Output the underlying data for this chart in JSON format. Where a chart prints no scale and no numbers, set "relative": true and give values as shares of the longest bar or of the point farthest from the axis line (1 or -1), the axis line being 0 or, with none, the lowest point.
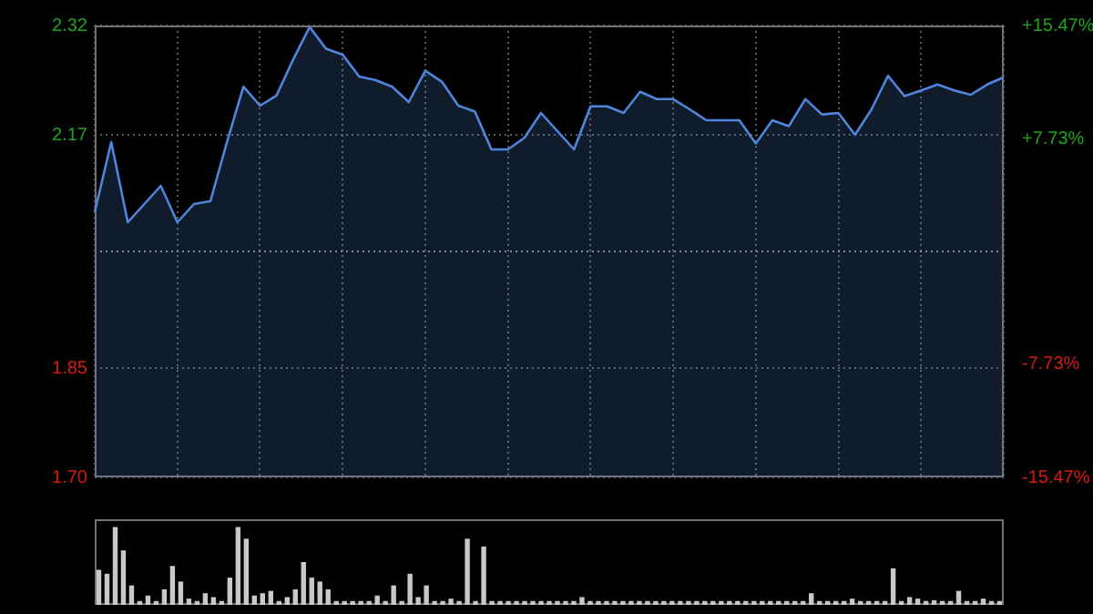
{
  "chart_data": [
    {
      "type": "area",
      "color": "#4f86dc",
      "marker": "none",
      "grid": true,
      "categories": [
        null,
        null,
        null,
        null,
        null,
        null,
        null,
        null,
        null,
        null,
        null,
        null,
        null,
        null,
        null,
        null,
        null,
        null,
        null,
        null,
        null,
        null,
        null,
        null,
        null,
        null,
        null,
        null,
        null,
        null,
        null,
        null,
        null,
        null,
        null,
        null,
        null,
        null,
        null,
        null,
        null,
        null,
        null,
        null,
        null,
        null,
        null,
        null,
        null,
        null,
        null,
        null,
        null,
        null,
        null,
        null
      ],
      "values": [
        2.064,
        2.16,
        2.05,
        2.075,
        2.1,
        2.05,
        2.075,
        2.079,
        2.16,
        2.236,
        2.21,
        2.224,
        2.273,
        2.318,
        2.288,
        2.28,
        2.25,
        2.245,
        2.236,
        2.215,
        2.258,
        2.243,
        2.21,
        2.202,
        2.15,
        2.15,
        2.166,
        2.2,
        2.175,
        2.15,
        2.209,
        2.209,
        2.2,
        2.229,
        2.219,
        2.219,
        2.205,
        2.19,
        2.19,
        2.19,
        2.158,
        2.19,
        2.182,
        2.219,
        2.198,
        2.2,
        2.17,
        2.205,
        2.251,
        2.223,
        2.231,
        2.239,
        2.231,
        2.225,
        2.239,
        2.249
      ],
      "ylim": [
        1.7,
        2.32
      ],
      "yticks": [
        {
          "value": 1.7,
          "label": "1.70"
        },
        1.85,
        2.17,
        2.32
      ],
      "y2lim": [
        -15.47,
        15.47
      ],
      "y2ticks": [
        {
          "value": -15.47,
          "label": "-15.47%"
        },
        {
          "value": -7.73,
          "label": "-7.73%"
        },
        {
          "value": 7.73,
          "label": "+7.73%"
        },
        {
          "value": 15.47,
          "label": "+15.47%"
        }
      ],
      "ref_lines": [
        {
          "axis": "y",
          "value": 2.01,
          "line_style": "dotted"
        }
      ]
    },
    {
      "type": "bar",
      "relative": true,
      "color": "#c8c8c8",
      "categories": [
        null,
        null,
        null,
        null,
        null,
        null,
        null,
        null,
        null,
        null,
        null,
        null,
        null,
        null,
        null,
        null,
        null,
        null,
        null,
        null,
        null,
        null,
        null,
        null,
        null,
        null,
        null,
        null,
        null,
        null,
        null,
        null,
        null,
        null,
        null,
        null,
        null,
        null,
        null,
        null,
        null,
        null,
        null,
        null,
        null,
        null,
        null,
        null,
        null,
        null,
        null,
        null,
        null,
        null,
        null,
        null,
        null,
        null,
        null,
        null,
        null,
        null,
        null,
        null,
        null,
        null,
        null,
        null,
        null,
        null,
        null,
        null,
        null,
        null,
        null,
        null,
        null,
        null,
        null,
        null,
        null,
        null,
        null,
        null,
        null,
        null,
        null,
        null,
        null,
        null,
        null,
        null,
        null,
        null,
        null,
        null,
        null,
        null,
        null,
        null,
        null,
        null,
        null,
        null,
        null,
        null,
        null,
        null,
        null,
        null,
        null
      ],
      "values": [
        0.45,
        0.4,
        1,
        0.7,
        0.25,
        0.05,
        0.12,
        0.05,
        0.2,
        0.5,
        0.3,
        0.08,
        0.05,
        0.15,
        0.1,
        0.05,
        0.35,
        1,
        0.85,
        0.12,
        0.15,
        0.18,
        0.05,
        0.1,
        0.2,
        0.55,
        0.35,
        0.3,
        0.2,
        0.05,
        0.05,
        0.05,
        0.05,
        0.05,
        0.12,
        0.05,
        0.25,
        0.05,
        0.4,
        0.1,
        0.25,
        0.05,
        0.05,
        0.08,
        0.05,
        0.85,
        0.05,
        0.75,
        0.05,
        0.05,
        0.05,
        0.05,
        0.05,
        0.05,
        0.05,
        0.05,
        0.05,
        0.05,
        0.05,
        0.1,
        0.05,
        0.05,
        0.05,
        0.05,
        0.05,
        0.05,
        0.05,
        0.05,
        0.05,
        0.05,
        0.05,
        0.05,
        0.05,
        0.05,
        0.05,
        0.05,
        0.05,
        0.05,
        0.05,
        0.05,
        0.05,
        0.05,
        0.05,
        0.05,
        0.05,
        0.05,
        0.05,
        0.15,
        0.05,
        0.05,
        0.05,
        0.05,
        0.08,
        0.05,
        0.05,
        0.05,
        0.05,
        0.47,
        0.05,
        0.1,
        0.08,
        0.05,
        0.06,
        0.05,
        0.05,
        0.18,
        0.05,
        0.05,
        0.08,
        0.05,
        0.05
      ]
    }
  ]
}
